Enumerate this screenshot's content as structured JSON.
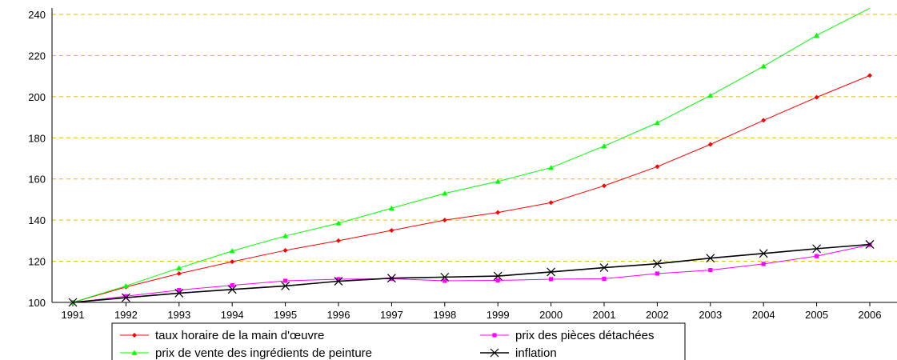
{
  "chart_data": {
    "type": "line",
    "title": "",
    "xlabel": "",
    "ylabel": "",
    "x": [
      "1991",
      "1992",
      "1993",
      "1994",
      "1995",
      "1996",
      "1997",
      "1998",
      "1999",
      "2000",
      "2001",
      "2002",
      "2003",
      "2004",
      "2005",
      "2006"
    ],
    "ylim": [
      100,
      240
    ],
    "yticks": [
      "100",
      "120",
      "140",
      "160",
      "180",
      "200",
      "220",
      "240"
    ],
    "grid": "horizontal dashed",
    "legend_position": "bottom",
    "series": [
      {
        "name": "taux horaire de la main d'œuvre",
        "color": "#ff0000",
        "marker": "diamond",
        "values": [
          100,
          107.5,
          114,
          119.8,
          125.3,
          130,
          135,
          140,
          143.7,
          148.5,
          156.7,
          166,
          176.8,
          188.5,
          199.7,
          210.3
        ]
      },
      {
        "name": "prix des pièces détachées",
        "color": "#ff00ff",
        "marker": "square",
        "values": [
          100,
          103,
          106,
          108.3,
          110.5,
          111.3,
          111.5,
          110.5,
          110.7,
          111.3,
          111.5,
          114,
          115.7,
          118.7,
          122.5,
          128
        ]
      },
      {
        "name": "prix de vente des ingrédients de peinture",
        "color": "#00ff00",
        "marker": "triangle",
        "values": [
          100,
          108,
          116.7,
          125,
          132.3,
          138.5,
          145.8,
          153,
          158.8,
          165.5,
          176,
          187.3,
          200.6,
          214.8,
          229.8,
          243
        ]
      },
      {
        "name": "inflation",
        "color": "#000000",
        "marker": "x",
        "values": [
          100,
          102.3,
          104.5,
          106.3,
          108,
          110.3,
          111.8,
          112.3,
          112.8,
          114.8,
          116.9,
          118.8,
          121.5,
          123.8,
          126.1,
          128.2
        ]
      }
    ]
  }
}
